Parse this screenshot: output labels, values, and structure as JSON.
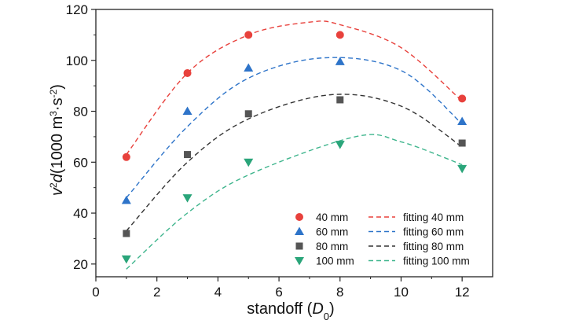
{
  "chart_data": {
    "type": "scatter",
    "xlabel": "standoff (D0)",
    "xlabel_parts": {
      "main": "standoff (",
      "italic": "D",
      "sub": "0",
      "close": ")"
    },
    "ylabel": "v2d(1000 m3·s-2)",
    "ylabel_parts": {
      "v": "v",
      "v_sup": "2",
      "d": "d",
      "unit_open": "(1000 m",
      "unit_sup1": "3",
      "unit_mid": "·s",
      "unit_sup2": "-2",
      "unit_close": ")"
    },
    "xlim": [
      0,
      13
    ],
    "ylim": [
      15,
      120
    ],
    "x_ticks": [
      0,
      2,
      4,
      6,
      8,
      10,
      12
    ],
    "y_ticks": [
      20,
      40,
      60,
      80,
      100,
      120
    ],
    "grid": false,
    "legend_position": "bottom-right",
    "series": [
      {
        "name": "40 mm",
        "marker": "circle",
        "color": "#e8413c",
        "x": [
          1,
          3,
          5,
          8,
          12
        ],
        "y": [
          62,
          95,
          110,
          110,
          85
        ]
      },
      {
        "name": "60 mm",
        "marker": "triangle-up",
        "color": "#2e74c9",
        "x": [
          1,
          3,
          5,
          8,
          12
        ],
        "y": [
          45,
          80,
          97,
          99.5,
          76
        ]
      },
      {
        "name": "80 mm",
        "marker": "square",
        "color": "#555555",
        "x": [
          1,
          3,
          5,
          8,
          12
        ],
        "y": [
          32,
          63,
          79,
          84.5,
          67.5
        ]
      },
      {
        "name": "100 mm",
        "marker": "triangle-down",
        "color": "#2aa57a",
        "x": [
          1,
          3,
          5,
          8,
          12
        ],
        "y": [
          22,
          46,
          60,
          67,
          57.5
        ]
      }
    ],
    "fits": [
      {
        "name": "fitting 40 mm",
        "color": "#e8413c",
        "x": [
          1,
          3,
          5,
          7,
          8,
          10,
          12
        ],
        "y": [
          63,
          95,
          110,
          115,
          114,
          105,
          84
        ]
      },
      {
        "name": "fitting 60 mm",
        "color": "#2e74c9",
        "x": [
          1,
          3,
          5,
          7.5,
          10,
          12
        ],
        "y": [
          46,
          74,
          93,
          101,
          96,
          75
        ]
      },
      {
        "name": "fitting 80 mm",
        "color": "#333333",
        "x": [
          1,
          3,
          5,
          7.7,
          10,
          12
        ],
        "y": [
          33,
          60,
          77,
          86.5,
          82,
          66
        ]
      },
      {
        "name": "fitting 100 mm",
        "color": "#3fb58d",
        "x": [
          1,
          3,
          5,
          8.5,
          10,
          12
        ],
        "y": [
          18,
          40,
          55,
          70,
          68,
          59
        ]
      }
    ]
  }
}
